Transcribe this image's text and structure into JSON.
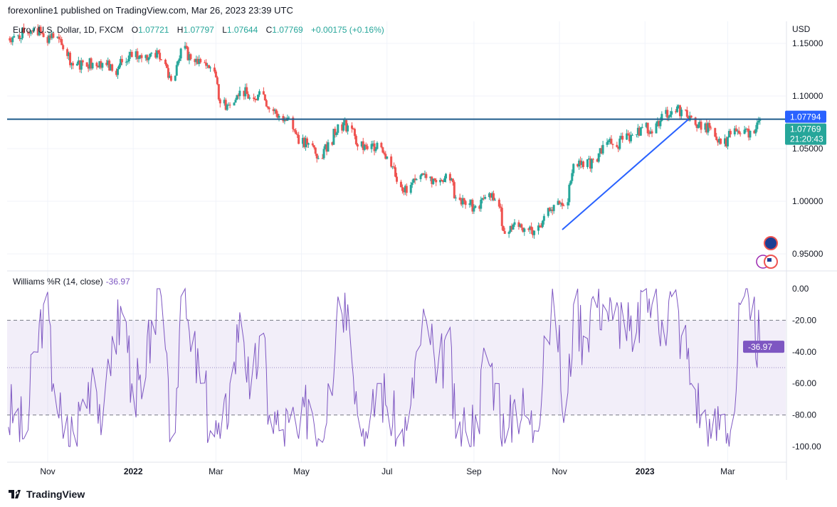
{
  "header": {
    "published": "forexonline1 published on TradingView.com, Mar 26, 2023 23:39 UTC"
  },
  "legend": {
    "symbol": "Euro / U.S. Dollar, 1D, FXCM",
    "o_label": "O",
    "o": "1.07721",
    "h_label": "H",
    "h": "1.07797",
    "l_label": "L",
    "l": "1.07644",
    "c_label": "C",
    "c": "1.07769",
    "change": "+0.00175 (+0.16%)"
  },
  "indicator": {
    "label": "Williams %R (14, close)",
    "value": "-36.97"
  },
  "price_axis": {
    "currency": "USD",
    "ticks": [
      "1.15000",
      "1.10000",
      "1.05000",
      "1.00000",
      "0.95000"
    ],
    "line_label": "1.07794",
    "last_label": "1.07769",
    "countdown": "21:20:43"
  },
  "indicator_axis": {
    "ticks": [
      "0.00",
      "-20.00",
      "-40.00",
      "-60.00",
      "-80.00",
      "-100.00"
    ]
  },
  "time_axis": {
    "ticks": [
      "Nov",
      "2022",
      "Mar",
      "May",
      "Jul",
      "Sep",
      "Nov",
      "2023",
      "Mar"
    ]
  },
  "footer": {
    "brand": "TradingView"
  },
  "colors": {
    "up": "#26a69a",
    "down": "#ef5350",
    "indicator": "#7e57c2",
    "price_line": "#1f5c8b",
    "trend_line": "#2962ff",
    "line_label_bg": "#2962ff",
    "last_label_bg": "#26a69a"
  },
  "chart_data": [
    {
      "type": "candlestick",
      "symbol": "EURUSD",
      "interval": "1D",
      "ylim": [
        0.93,
        1.17
      ],
      "weekly_closes": [
        [
          "2021-10-08",
          1.157
        ],
        [
          "2021-10-15",
          1.16
        ],
        [
          "2021-10-22",
          1.1645
        ],
        [
          "2021-10-29",
          1.156
        ],
        [
          "2021-11-05",
          1.1555
        ],
        [
          "2021-11-12",
          1.1445
        ],
        [
          "2021-11-19",
          1.129
        ],
        [
          "2021-11-26",
          1.132
        ],
        [
          "2021-12-03",
          1.1315
        ],
        [
          "2021-12-10",
          1.1315
        ],
        [
          "2021-12-17",
          1.124
        ],
        [
          "2021-12-24",
          1.132
        ],
        [
          "2021-12-31",
          1.137
        ],
        [
          "2022-01-07",
          1.136
        ],
        [
          "2022-01-14",
          1.141
        ],
        [
          "2022-01-21",
          1.1345
        ],
        [
          "2022-01-28",
          1.1145
        ],
        [
          "2022-02-04",
          1.145
        ],
        [
          "2022-02-11",
          1.135
        ],
        [
          "2022-02-18",
          1.132
        ],
        [
          "2022-02-25",
          1.127
        ],
        [
          "2022-03-04",
          1.093
        ],
        [
          "2022-03-11",
          1.091
        ],
        [
          "2022-03-18",
          1.105
        ],
        [
          "2022-03-25",
          1.0985
        ],
        [
          "2022-04-01",
          1.1045
        ],
        [
          "2022-04-08",
          1.0875
        ],
        [
          "2022-04-15",
          1.081
        ],
        [
          "2022-04-22",
          1.0795
        ],
        [
          "2022-04-29",
          1.0545
        ],
        [
          "2022-05-06",
          1.055
        ],
        [
          "2022-05-13",
          1.041
        ],
        [
          "2022-05-20",
          1.056
        ],
        [
          "2022-05-27",
          1.073
        ],
        [
          "2022-06-03",
          1.072
        ],
        [
          "2022-06-10",
          1.052
        ],
        [
          "2022-06-17",
          1.0495
        ],
        [
          "2022-06-24",
          1.0555
        ],
        [
          "2022-07-01",
          1.0425
        ],
        [
          "2022-07-08",
          1.0185
        ],
        [
          "2022-07-15",
          1.008
        ],
        [
          "2022-07-22",
          1.021
        ],
        [
          "2022-07-29",
          1.022
        ],
        [
          "2022-08-05",
          1.018
        ],
        [
          "2022-08-12",
          1.026
        ],
        [
          "2022-08-19",
          1.0035
        ],
        [
          "2022-08-26",
          0.9965
        ],
        [
          "2022-09-02",
          0.9955
        ],
        [
          "2022-09-09",
          1.004
        ],
        [
          "2022-09-16",
          1.0015
        ],
        [
          "2022-09-23",
          0.969
        ],
        [
          "2022-09-30",
          0.98
        ],
        [
          "2022-10-07",
          0.974
        ],
        [
          "2022-10-14",
          0.972
        ],
        [
          "2022-10-21",
          0.986
        ],
        [
          "2022-10-28",
          0.9965
        ],
        [
          "2022-11-04",
          0.996
        ],
        [
          "2022-11-11",
          1.0355
        ],
        [
          "2022-11-18",
          1.0325
        ],
        [
          "2022-11-25",
          1.04
        ],
        [
          "2022-12-02",
          1.0535
        ],
        [
          "2022-12-09",
          1.0535
        ],
        [
          "2022-12-16",
          1.0585
        ],
        [
          "2022-12-23",
          1.063
        ],
        [
          "2022-12-30",
          1.0705
        ],
        [
          "2023-01-06",
          1.0645
        ],
        [
          "2023-01-13",
          1.083
        ],
        [
          "2023-01-20",
          1.0855
        ],
        [
          "2023-01-27",
          1.087
        ],
        [
          "2023-02-03",
          1.0795
        ],
        [
          "2023-02-10",
          1.068
        ],
        [
          "2023-02-17",
          1.0695
        ],
        [
          "2023-02-24",
          1.0545
        ],
        [
          "2023-03-03",
          1.0635
        ],
        [
          "2023-03-10",
          1.064
        ],
        [
          "2023-03-17",
          1.067
        ],
        [
          "2023-03-24",
          1.0777
        ]
      ],
      "horizontal_line": 1.07794,
      "trend_line": [
        [
          "2022-11-03",
          0.973
        ],
        [
          "2023-02-01",
          1.0779
        ]
      ]
    },
    {
      "type": "line",
      "name": "Williams %R (14, close)",
      "ylim": [
        -100,
        0
      ],
      "levels": [
        -20,
        -50,
        -80
      ],
      "values": [
        -80,
        -95,
        -40,
        -10,
        -60,
        -95,
        -90,
        -70,
        -50,
        -85,
        -30,
        -15,
        -60,
        -70,
        -20,
        -5,
        -95,
        -5,
        -40,
        -60,
        -90,
        -95,
        -60,
        -15,
        -70,
        -30,
        -80,
        -90,
        -85,
        -95,
        -70,
        -95,
        -60,
        -5,
        -10,
        -80,
        -95,
        -60,
        -75,
        -95,
        -90,
        -40,
        -20,
        -60,
        -30,
        -95,
        -90,
        -80,
        -40,
        -60,
        -98,
        -70,
        -80,
        -90,
        -30,
        -10,
        -85,
        -10,
        -30,
        -5,
        -10,
        -20,
        -15,
        -40,
        -2,
        -10,
        -20,
        -5,
        -30,
        -60,
        -80,
        -95,
        -80,
        -90,
        -10,
        -20,
        -36.97
      ]
    }
  ]
}
